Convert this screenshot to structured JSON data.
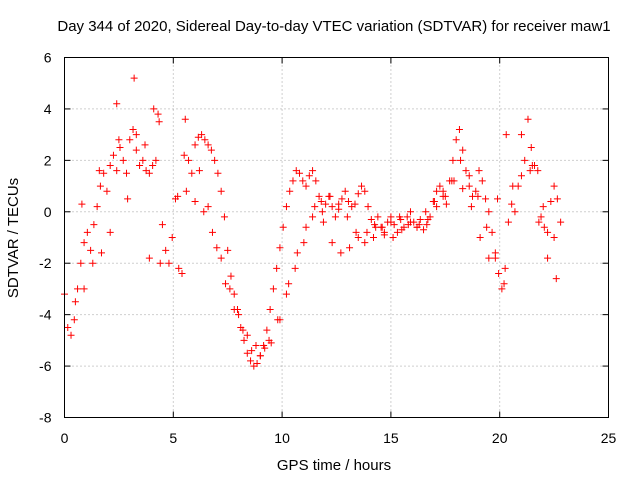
{
  "chart_data": {
    "type": "scatter",
    "title": "Day 344 of 2020, Sidereal Day-to-day VTEC variation (SDTVAR) for receiver maw1",
    "xlabel": "GPS time / hours",
    "ylabel": "SDTVAR / TECUs",
    "xlim": [
      0,
      25
    ],
    "ylim": [
      -8,
      6
    ],
    "xticks": [
      0,
      5,
      10,
      15,
      20,
      25
    ],
    "yticks": [
      -8,
      -6,
      -4,
      -2,
      0,
      2,
      4,
      6
    ],
    "grid": true,
    "marker": "+",
    "color": "#ff0000",
    "series": [
      {
        "name": "SDTVAR",
        "x": [
          0.0,
          0.15,
          0.3,
          0.45,
          0.6,
          0.75,
          0.9,
          1.05,
          1.2,
          1.35,
          1.5,
          1.65,
          1.8,
          1.95,
          2.1,
          2.25,
          2.4,
          2.55,
          2.7,
          2.85,
          3.0,
          3.15,
          3.3,
          3.45,
          3.6,
          3.75,
          3.9,
          4.05,
          4.2,
          4.35,
          4.5,
          4.65,
          4.8,
          4.95,
          5.1,
          5.25,
          5.4,
          5.55,
          5.7,
          5.85,
          6.0,
          6.15,
          6.3,
          6.45,
          6.6,
          6.75,
          6.9,
          7.05,
          7.2,
          7.35,
          7.5,
          7.65,
          7.8,
          7.95,
          8.1,
          8.25,
          8.4,
          8.55,
          8.7,
          8.85,
          9.0,
          9.15,
          9.3,
          9.45,
          9.6,
          9.75,
          9.9,
          10.05,
          10.2,
          10.35,
          10.5,
          10.65,
          10.8,
          10.95,
          11.1,
          11.25,
          11.4,
          11.55,
          11.7,
          11.85,
          12.0,
          12.15,
          12.3,
          12.45,
          12.6,
          12.75,
          12.9,
          13.05,
          13.2,
          13.35,
          13.5,
          13.65,
          13.8,
          13.95,
          14.1,
          14.25,
          14.4,
          14.55,
          14.7,
          14.85,
          15.0,
          15.15,
          15.3,
          15.45,
          15.6,
          15.75,
          15.9,
          16.05,
          16.2,
          16.35,
          16.5,
          16.65,
          16.8,
          16.95,
          17.1,
          17.25,
          17.4,
          17.55,
          17.7,
          17.85,
          18.0,
          18.15,
          18.3,
          18.45,
          18.6,
          18.75,
          18.9,
          19.05,
          19.2,
          19.35,
          19.5,
          19.65,
          19.8,
          19.95,
          20.1,
          20.25,
          20.4,
          20.55,
          20.7,
          20.85,
          21.0,
          21.15,
          21.3,
          21.45,
          21.6,
          21.75,
          21.9,
          22.05,
          22.2,
          22.35,
          22.5,
          22.65,
          22.8,
          0.5,
          0.9,
          1.3,
          1.7,
          2.1,
          2.5,
          2.9,
          3.3,
          3.7,
          4.1,
          5.6,
          6.0,
          6.4,
          6.8,
          7.2,
          7.6,
          8.0,
          8.4,
          8.8,
          9.2,
          9.5,
          9.9,
          10.3,
          10.7,
          11.1,
          11.5,
          11.9,
          12.3,
          12.7,
          13.1,
          13.5,
          13.9,
          14.3,
          14.7,
          15.1,
          15.5,
          15.9,
          16.3,
          16.7,
          17.1,
          17.5,
          17.9,
          18.3,
          18.7,
          19.1,
          19.5,
          19.9,
          20.3,
          21.4,
          21.8,
          22.2,
          22.6,
          0.8,
          1.6,
          2.4,
          3.2,
          3.9,
          4.3,
          4.4,
          5.2,
          5.5,
          6.2,
          6.6,
          7.0,
          7.4,
          7.8,
          8.2,
          8.6,
          9.0,
          9.4,
          9.8,
          10.2,
          10.6,
          11.0,
          11.4,
          11.8,
          12.2,
          12.6,
          13.0,
          13.4,
          13.8,
          14.2,
          14.6,
          15.0,
          15.4,
          15.8,
          16.2,
          16.6,
          17.0,
          17.4,
          17.8,
          18.2,
          18.6,
          19.0,
          19.4,
          19.8,
          20.2,
          20.6,
          21.0,
          21.5,
          22.0,
          22.5
        ],
        "y": [
          -3.2,
          -4.5,
          -4.8,
          -4.2,
          -3.0,
          -2.0,
          -1.2,
          -0.8,
          -1.5,
          -0.5,
          0.2,
          1.0,
          1.5,
          0.8,
          1.8,
          2.2,
          1.6,
          2.5,
          2.0,
          1.5,
          2.8,
          3.2,
          2.4,
          1.8,
          2.0,
          1.6,
          1.5,
          1.8,
          2.0,
          3.5,
          -0.5,
          -1.5,
          -2.0,
          -1.0,
          0.5,
          -2.2,
          -2.4,
          3.6,
          2.0,
          1.5,
          2.6,
          2.9,
          3.0,
          2.8,
          2.6,
          2.4,
          2.0,
          1.5,
          0.8,
          -0.2,
          -1.5,
          -2.5,
          -3.2,
          -3.8,
          -4.5,
          -5.0,
          -5.5,
          -5.8,
          -6.0,
          -5.9,
          -5.6,
          -5.2,
          -4.6,
          -3.8,
          -3.0,
          -2.2,
          -1.4,
          -0.6,
          0.2,
          0.8,
          1.2,
          1.6,
          1.5,
          1.2,
          1.0,
          1.4,
          1.6,
          1.2,
          0.6,
          0.0,
          0.3,
          0.6,
          0.2,
          -0.2,
          0.1,
          0.5,
          0.8,
          0.4,
          0.2,
          0.3,
          0.7,
          1.0,
          0.8,
          0.2,
          -0.3,
          -0.5,
          -0.2,
          -0.6,
          -0.8,
          -0.4,
          -0.2,
          -0.5,
          -0.8,
          -0.3,
          -0.6,
          -0.2,
          0.0,
          -0.4,
          -0.6,
          -0.3,
          -0.7,
          -0.5,
          -0.2,
          0.4,
          0.8,
          1.0,
          0.6,
          0.3,
          1.2,
          2.0,
          2.8,
          3.2,
          2.4,
          1.6,
          1.0,
          0.6,
          0.8,
          1.6,
          1.2,
          0.5,
          0.0,
          -0.8,
          -1.6,
          -2.4,
          -3.0,
          -2.2,
          -0.4,
          0.3,
          0.0,
          1.0,
          1.4,
          2.0,
          3.6,
          2.5,
          1.8,
          1.6,
          -0.2,
          -0.6,
          -0.8,
          0.4,
          1.0,
          0.5,
          -0.4,
          -3.5,
          -3.0,
          -2.0,
          -1.6,
          -0.8,
          2.8,
          0.5,
          3.0,
          2.6,
          4.0,
          0.8,
          0.4,
          0.0,
          -0.8,
          -1.8,
          -3.0,
          -4.0,
          -4.8,
          -5.2,
          -5.3,
          -5.1,
          -4.2,
          -2.8,
          -1.6,
          -0.6,
          0.2,
          -0.4,
          -1.2,
          -1.6,
          -1.4,
          -1.0,
          -0.8,
          -0.6,
          -0.9,
          -1.0,
          -0.7,
          -0.4,
          -0.5,
          -0.3,
          0.2,
          0.6,
          1.2,
          0.9,
          0.2,
          -1.0,
          -1.8,
          0.5,
          3.0,
          1.6,
          -0.4,
          -1.8,
          -2.6,
          0.3,
          1.6,
          4.2,
          5.2,
          -1.8,
          3.8,
          -2.0,
          0.6,
          2.2,
          1.6,
          0.2,
          -1.4,
          -2.8,
          -3.8,
          -4.6,
          -5.4,
          -5.6,
          -5.0,
          -4.2,
          -3.2,
          -2.2,
          -1.2,
          -0.2,
          0.4,
          0.6,
          0.3,
          -0.2,
          -0.8,
          -1.2,
          -1.0,
          -0.6,
          -0.4,
          -0.2,
          -0.5,
          -0.6,
          0.0,
          0.4,
          0.8,
          1.2,
          2.0,
          1.4,
          0.6,
          -0.6,
          -1.8,
          -2.8,
          1.0,
          3.0,
          1.8,
          0.2,
          -1.0
        ]
      }
    ]
  }
}
